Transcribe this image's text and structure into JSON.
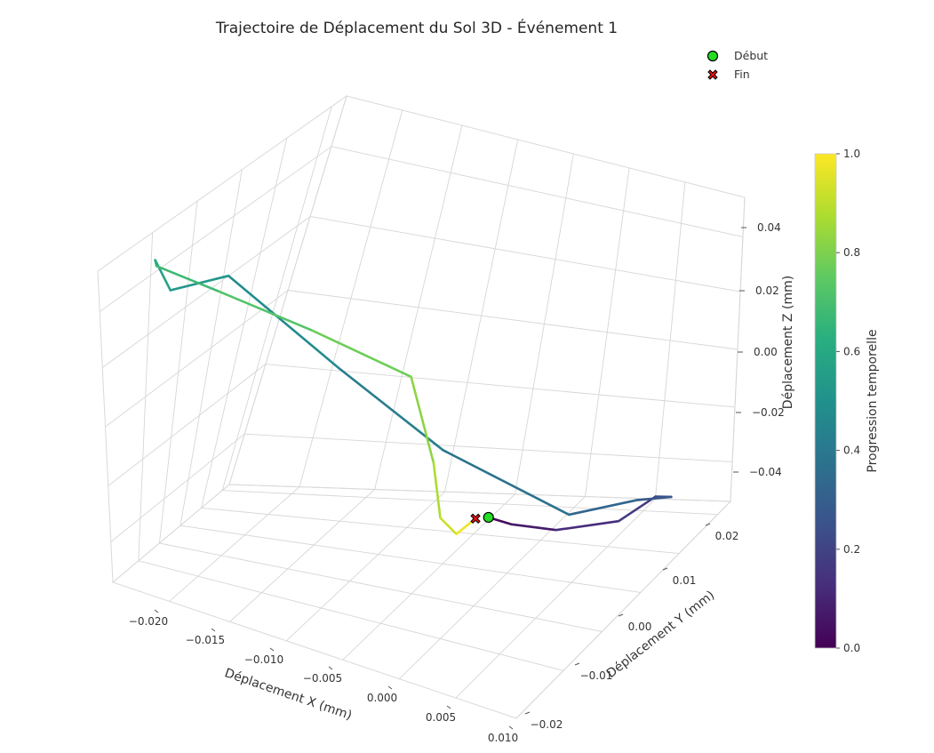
{
  "chart_data": {
    "type": "line",
    "projection": "3d",
    "title": "Trajectoire de Déplacement du Sol 3D - Événement 1",
    "xlabel": "Déplacement X (mm)",
    "ylabel": "Déplacement Y (mm)",
    "zlabel": "Déplacement Z (mm)",
    "xlim": [
      -0.024,
      0.011
    ],
    "ylim": [
      -0.025,
      0.028
    ],
    "zlim": [
      -0.05,
      0.05
    ],
    "x_ticks": [
      "−0.020",
      "−0.015",
      "−0.010",
      "−0.005",
      "0.000",
      "0.005",
      "0.010"
    ],
    "y_ticks": [
      "−0.02",
      "−0.01",
      "0.00",
      "0.01",
      "0.02"
    ],
    "z_ticks": [
      "0.04",
      "0.02",
      "0.00",
      "−0.02",
      "−0.04"
    ],
    "colormap": "viridis",
    "colorbar": {
      "label": "Progression temporelle",
      "ticks": [
        "1.0",
        "0.8",
        "0.6",
        "0.4",
        "0.2",
        "0.0"
      ]
    },
    "legend": {
      "placement": "top-right",
      "entries": [
        {
          "label": "Début",
          "marker": "circle",
          "color": "#22dd22"
        },
        {
          "label": "Fin",
          "marker": "x",
          "color": "#ee1111"
        }
      ]
    },
    "series": [
      {
        "x": [
          0.0018,
          0.0025,
          0.0045,
          0.0075,
          0.0085,
          0.0085,
          0.0055,
          0.0012,
          -0.006,
          -0.012,
          -0.0185,
          -0.022,
          -0.0225,
          -0.022,
          -0.017,
          -0.01,
          -0.003,
          -0.002,
          -0.002,
          -0.001,
          0.0005
        ],
        "y": [
          -0.003,
          0.001,
          0.006,
          0.012,
          0.018,
          0.022,
          0.024,
          0.022,
          0.014,
          0.006,
          -0.004,
          -0.01,
          -0.014,
          -0.016,
          -0.015,
          -0.012,
          -0.008,
          -0.005,
          -0.003,
          -0.002,
          -0.002
        ],
        "z": [
          -0.018,
          -0.025,
          -0.032,
          -0.035,
          -0.034,
          -0.04,
          -0.045,
          -0.049,
          -0.02,
          0.012,
          0.045,
          0.04,
          0.052,
          0.052,
          0.05,
          0.044,
          0.033,
          0.0,
          -0.022,
          -0.028,
          -0.021
        ],
        "t": [
          0.0,
          0.05,
          0.1,
          0.15,
          0.2,
          0.25,
          0.3,
          0.35,
          0.4,
          0.45,
          0.5,
          0.55,
          0.6,
          0.65,
          0.7,
          0.75,
          0.8,
          0.85,
          0.9,
          0.95,
          1.0
        ]
      }
    ],
    "grid": true
  }
}
